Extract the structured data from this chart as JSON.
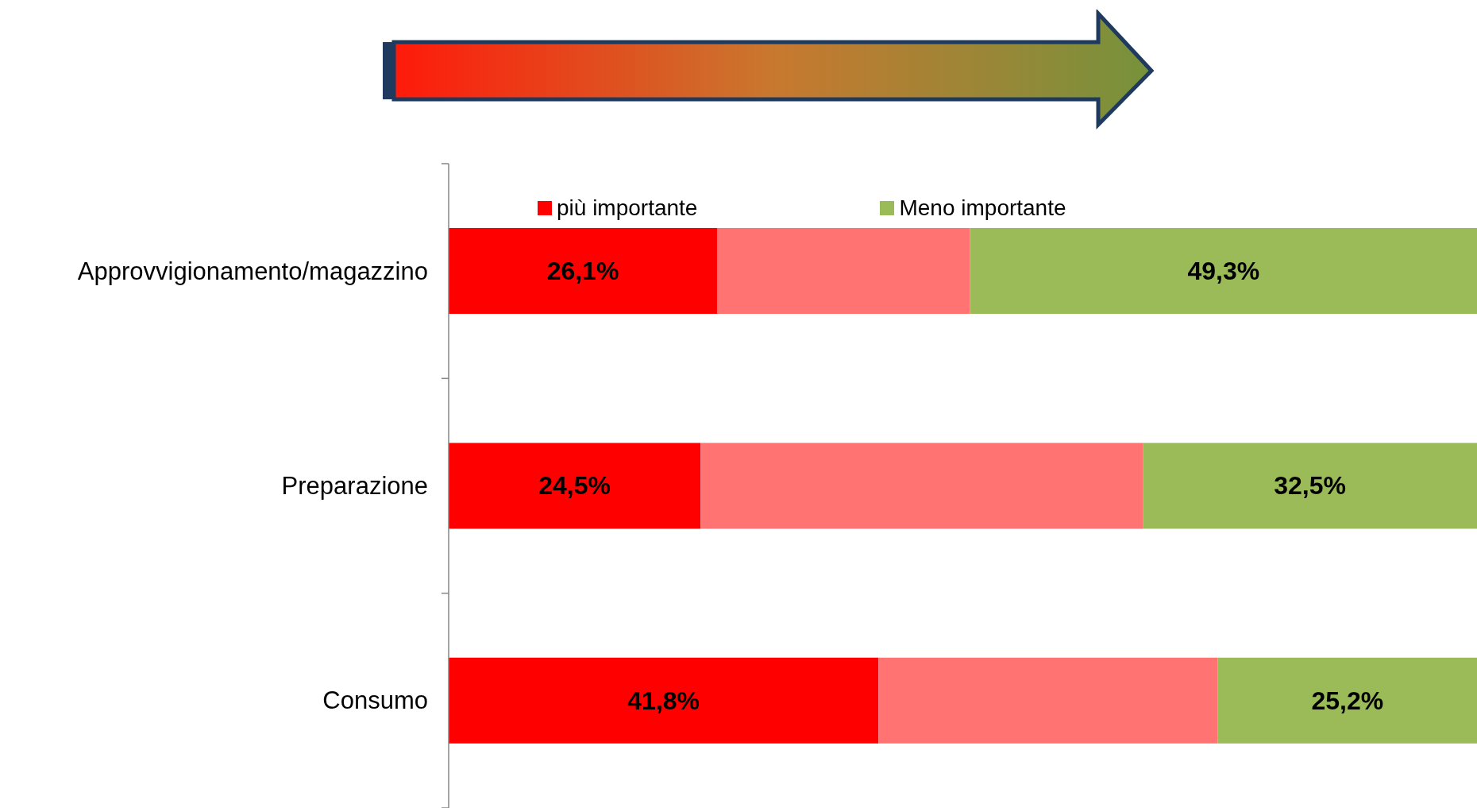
{
  "chart_data": {
    "type": "bar",
    "orientation": "horizontal",
    "stacked": true,
    "categories": [
      "Approvvigionamento/magazzino",
      "Preparazione",
      "Consumo"
    ],
    "series": [
      {
        "name": "più importante",
        "color": "#ff0000",
        "values": [
          26.1,
          24.5,
          41.8
        ],
        "value_labels": [
          "26,1%",
          "24,5%",
          "41,8%"
        ]
      },
      {
        "color": "#ff7373",
        "values": [
          24.6,
          43.0,
          33.0
        ],
        "value_labels": [
          null,
          null,
          null
        ]
      },
      {
        "name": "Meno importante",
        "color": "#9bbb59",
        "values": [
          49.3,
          32.5,
          25.2
        ],
        "value_labels": [
          "49,3%",
          "32,5%",
          "25,2%"
        ]
      }
    ],
    "xlim": [
      0,
      100
    ],
    "tick_labels": "y",
    "legend": "top"
  }
}
